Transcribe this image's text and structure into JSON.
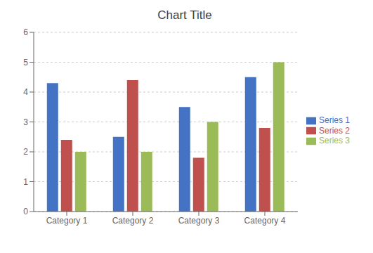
{
  "chart_data": {
    "type": "bar",
    "title": "Chart Title",
    "categories": [
      "Category 1",
      "Category 2",
      "Category 3",
      "Category 4"
    ],
    "series": [
      {
        "name": "Series 1",
        "values": [
          4.3,
          2.5,
          3.5,
          4.5
        ],
        "color": "#4472C4"
      },
      {
        "name": "Series 2",
        "values": [
          2.4,
          4.4,
          1.8,
          2.8
        ],
        "color": "#C0504D"
      },
      {
        "name": "Series 3",
        "values": [
          2.0,
          2.0,
          3.0,
          5.0
        ],
        "color": "#9BBB59"
      }
    ],
    "ylim": [
      0,
      6
    ],
    "yticks": [
      0,
      1,
      2,
      3,
      4,
      5,
      6
    ],
    "grid": true,
    "legend": "right"
  }
}
